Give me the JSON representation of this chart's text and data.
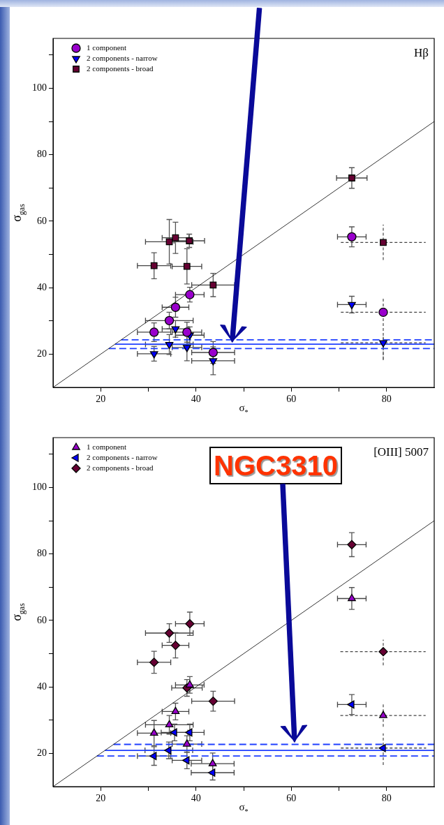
{
  "chart_data": [
    {
      "type": "scatter",
      "xlabel": "σ$_{*}$",
      "ylabel": "σ$_{gas}$",
      "annotations": [
        "Hβ",
        "NGC3310"
      ],
      "xlim": [
        10,
        90
      ],
      "ylim": [
        10,
        115
      ],
      "xticks": [
        20,
        {
          "value": 30,
          "label": null
        },
        40,
        {
          "value": 50,
          "label": null
        },
        60,
        {
          "value": 70,
          "label": null
        },
        80
      ],
      "yticks": [
        20,
        {
          "value": 30,
          "label": null
        },
        40,
        {
          "value": 50,
          "label": null
        },
        60,
        {
          "value": 70,
          "label": null
        },
        80,
        {
          "value": 90,
          "label": null
        },
        100,
        {
          "value": 110,
          "label": null
        }
      ],
      "grid": false,
      "legend": "top left",
      "series": [
        {
          "name": "1 component",
          "type": "scatter",
          "marker": "circle",
          "color": "#9900cc",
          "x": [
            31.2,
            34.4,
            35.7,
            38.1,
            38.7,
            43.6,
            72.7,
            79.3
          ],
          "values": [
            26.6,
            30.1,
            34.1,
            26.6,
            37.9,
            20.5,
            55.3,
            32.6
          ],
          "errors": [
            2.8,
            2.5,
            3,
            3,
            2.2,
            3.3,
            3,
            [
              18.2,
              36.8
            ]
          ],
          "xerrors": [
            3.5,
            5,
            2.8,
            3.1,
            3,
            4.5,
            3,
            [
              70.4,
              88.2
            ]
          ]
        },
        {
          "name": "2 components - narrow",
          "type": "scatter",
          "marker": "triangle-down",
          "color": "#0000ff",
          "x": [
            31.2,
            34.4,
            35.7,
            38.1,
            38.7,
            43.6,
            72.7,
            79.3
          ],
          "values": [
            20.1,
            22.9,
            27.6,
            22.0,
            25.7,
            18.0,
            34.9,
            23.4
          ],
          "errors": [
            2.2,
            3,
            2.5,
            4,
            2.5,
            4.2,
            2.5,
            [
              18.5,
              25.2
            ]
          ],
          "xerrors": [
            3.5,
            5,
            2.8,
            3.1,
            3,
            4.5,
            3,
            [
              70.4,
              88.2
            ]
          ]
        },
        {
          "name": "2 components - broad",
          "type": "scatter",
          "marker": "square",
          "color": "#660033",
          "x": [
            31.2,
            34.4,
            35.7,
            38.1,
            38.6,
            43.6,
            72.7,
            79.3
          ],
          "values": [
            46.6,
            53.8,
            55.0,
            46.4,
            54.1,
            40.8,
            73.0,
            53.6
          ],
          "errors": [
            3.9,
            6.7,
            4.7,
            5.3,
            2,
            3.5,
            3.1,
            [
              48.3,
              59.0
            ]
          ],
          "xerrors": [
            3.5,
            5,
            2.8,
            3.1,
            3.2,
            4.5,
            3.2,
            [
              70.4,
              88.2
            ]
          ]
        },
        {
          "type": "line",
          "marker": "none",
          "line_style": "solid",
          "color": "#000000",
          "x": [
            10,
            90
          ],
          "values": [
            10,
            90
          ]
        },
        {
          "type": "line",
          "marker": "none",
          "line_style": "dashed",
          "color": "#1f3fff",
          "x": [
            24.3,
            90
          ],
          "values": [
            24.3,
            24.3
          ]
        },
        {
          "type": "line",
          "marker": "none",
          "line_style": "solid",
          "color": "#1f3fff",
          "x": [
            23,
            90
          ],
          "values": [
            23,
            23
          ]
        },
        {
          "type": "line",
          "marker": "none",
          "line_style": "dashed",
          "color": "#1f3fff",
          "x": [
            21.7,
            90
          ],
          "values": [
            21.7,
            21.7
          ]
        }
      ]
    },
    {
      "type": "scatter",
      "xlabel": "σ$_{*}$",
      "ylabel": "σ$_{gas}$",
      "annotations": [
        "[OIII] 5007"
      ],
      "xlim": [
        10,
        90
      ],
      "ylim": [
        10,
        115
      ],
      "xticks": [
        20,
        {
          "value": 30,
          "label": null
        },
        40,
        {
          "value": 50,
          "label": null
        },
        60,
        {
          "value": 70,
          "label": null
        },
        80
      ],
      "yticks": [
        20,
        {
          "value": 30,
          "label": null
        },
        40,
        {
          "value": 50,
          "label": null
        },
        60,
        {
          "value": 70,
          "label": null
        },
        80,
        {
          "value": 90,
          "label": null
        },
        100,
        {
          "value": 110,
          "label": null
        }
      ],
      "grid": false,
      "legend": "top left",
      "series": [
        {
          "name": "1 component",
          "type": "scatter",
          "marker": "triangle",
          "color": "#9900cc",
          "x": [
            31.2,
            34.4,
            35.7,
            38.1,
            38.7,
            43.5,
            72.7,
            79.3
          ],
          "values": [
            26.1,
            28.6,
            32.6,
            22.8,
            40.6,
            16.9,
            66.6,
            31.4
          ],
          "errors": [
            3.8,
            2.8,
            2.5,
            2.5,
            2.5,
            3.2,
            3.3,
            [
              28,
              35.1
            ]
          ],
          "xerrors": [
            3.5,
            5,
            2.8,
            3.1,
            3,
            4.5,
            3,
            [
              70.3,
              88.2
            ]
          ]
        },
        {
          "name": "2 components - narrow",
          "type": "scatter",
          "marker": "triangle-left",
          "color": "#0000ff",
          "x": [
            31.2,
            34.3,
            35.5,
            38.1,
            38.7,
            43.5,
            72.7,
            79.3
          ],
          "values": [
            19.2,
            20.9,
            26.3,
            17.9,
            26.3,
            14.2,
            34.7,
            21.6
          ],
          "errors": [
            2.8,
            2.5,
            2.5,
            2.5,
            2.5,
            2.2,
            3,
            [
              16.5,
              26
            ]
          ],
          "xerrors": [
            3.5,
            5,
            2.8,
            3.1,
            3,
            4.5,
            3,
            [
              70.4,
              88.3
            ]
          ]
        },
        {
          "name": "2 components - broad",
          "type": "scatter",
          "marker": "diamond",
          "color": "#660033",
          "x": [
            31.2,
            34.4,
            35.7,
            38.1,
            38.7,
            43.6,
            72.7,
            79.3
          ],
          "values": [
            47.4,
            56.2,
            52.5,
            39.7,
            59.0,
            35.7,
            82.8,
            50.6
          ],
          "errors": [
            3.3,
            2.8,
            3.8,
            2.5,
            3.5,
            3,
            3.6,
            [
              46.5,
              54.2
            ]
          ],
          "xerrors": [
            3.5,
            5,
            2.8,
            3.2,
            3,
            4.5,
            3,
            [
              70.3,
              88.2
            ]
          ]
        },
        {
          "type": "line",
          "marker": "none",
          "line_style": "solid",
          "color": "#000000",
          "x": [
            10,
            90
          ],
          "values": [
            10,
            90
          ]
        },
        {
          "type": "line",
          "marker": "none",
          "line_style": "dashed",
          "color": "#1f3fff",
          "x": [
            22.7,
            90
          ],
          "values": [
            22.7,
            22.7
          ]
        },
        {
          "type": "line",
          "marker": "none",
          "line_style": "solid",
          "color": "#1f3fff",
          "x": [
            20.9,
            90
          ],
          "values": [
            20.9,
            20.9
          ]
        },
        {
          "type": "line",
          "marker": "none",
          "line_style": "dashed",
          "color": "#1f3fff",
          "x": [
            19.2,
            90
          ],
          "values": [
            19.2,
            19.2
          ]
        }
      ]
    }
  ]
}
